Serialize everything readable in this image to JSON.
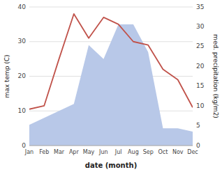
{
  "chart_data": {
    "type": "line",
    "x_label": "date (month)",
    "y_label": "max temp (C)",
    "y2_label": "med. precipitation (kg/m2)",
    "categories": [
      "Jan",
      "Feb",
      "Mar",
      "Apr",
      "May",
      "Jun",
      "Jul",
      "Aug",
      "Sep",
      "Oct",
      "Nov",
      "Dec"
    ],
    "series": [
      {
        "type": "area",
        "color": "#b8c8e8",
        "values": [
          6.0,
          8.0,
          10.0,
          12.0,
          29.0,
          25.0,
          35.0,
          35.0,
          27.0,
          5.0,
          5.0,
          4.0
        ]
      },
      {
        "type": "line",
        "color": "#c0524a",
        "values": [
          10.5,
          11.5,
          25.0,
          38.0,
          31.0,
          37.0,
          35.0,
          30.0,
          29.0,
          22.0,
          19.0,
          11.0
        ]
      }
    ],
    "ylim": [
      0,
      40
    ],
    "yticks": [
      0,
      10,
      20,
      30,
      40
    ],
    "y2lim": [
      0,
      35
    ],
    "y2ticks": [
      0,
      5,
      10,
      15,
      20,
      25,
      30,
      35
    ],
    "grid": true
  }
}
